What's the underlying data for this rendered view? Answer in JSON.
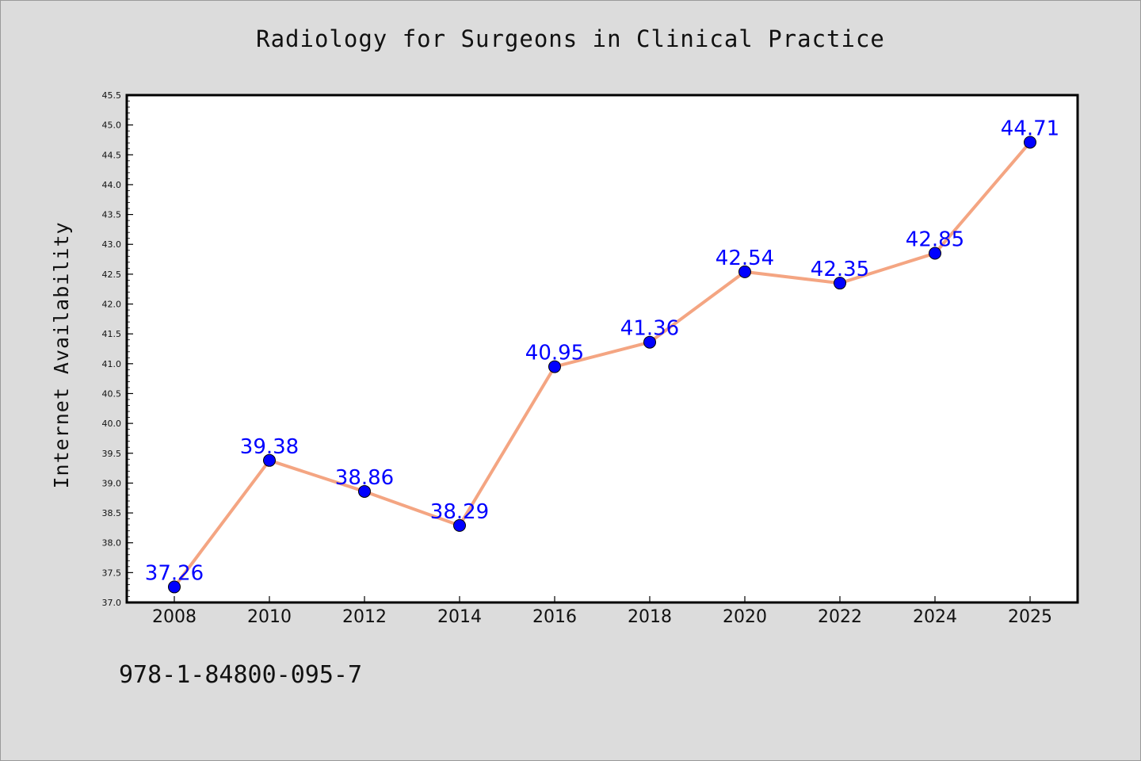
{
  "chart_data": {
    "type": "line",
    "title": "Radiology for Surgeons in Clinical Practice",
    "xlabel": "",
    "ylabel": "Internet Availability",
    "categories": [
      "2008",
      "2010",
      "2012",
      "2014",
      "2016",
      "2018",
      "2020",
      "2022",
      "2024",
      "2025"
    ],
    "series": [
      {
        "values": [
          37.26,
          39.38,
          38.86,
          38.29,
          40.95,
          41.36,
          42.54,
          42.35,
          42.85,
          44.71
        ],
        "data_labels": [
          "37.26",
          "39.38",
          "38.86",
          "38.29",
          "40.95",
          "41.36",
          "42.54",
          "42.35",
          "42.85",
          "44.71"
        ]
      }
    ],
    "ylim": [
      37.0,
      45.5
    ],
    "yticks": [
      "37.0",
      "37.5",
      "38.0",
      "38.5",
      "39.0",
      "39.5",
      "40.0",
      "40.5",
      "41.0",
      "41.5",
      "42.0",
      "42.5",
      "43.0",
      "43.5",
      "44.0",
      "44.5",
      "45.0",
      "45.5"
    ],
    "grid": false,
    "line_color": "#f4a582",
    "marker_color": "#0000ff",
    "label_color": "#0000ff"
  },
  "footnote": "978-1-84800-095-7"
}
